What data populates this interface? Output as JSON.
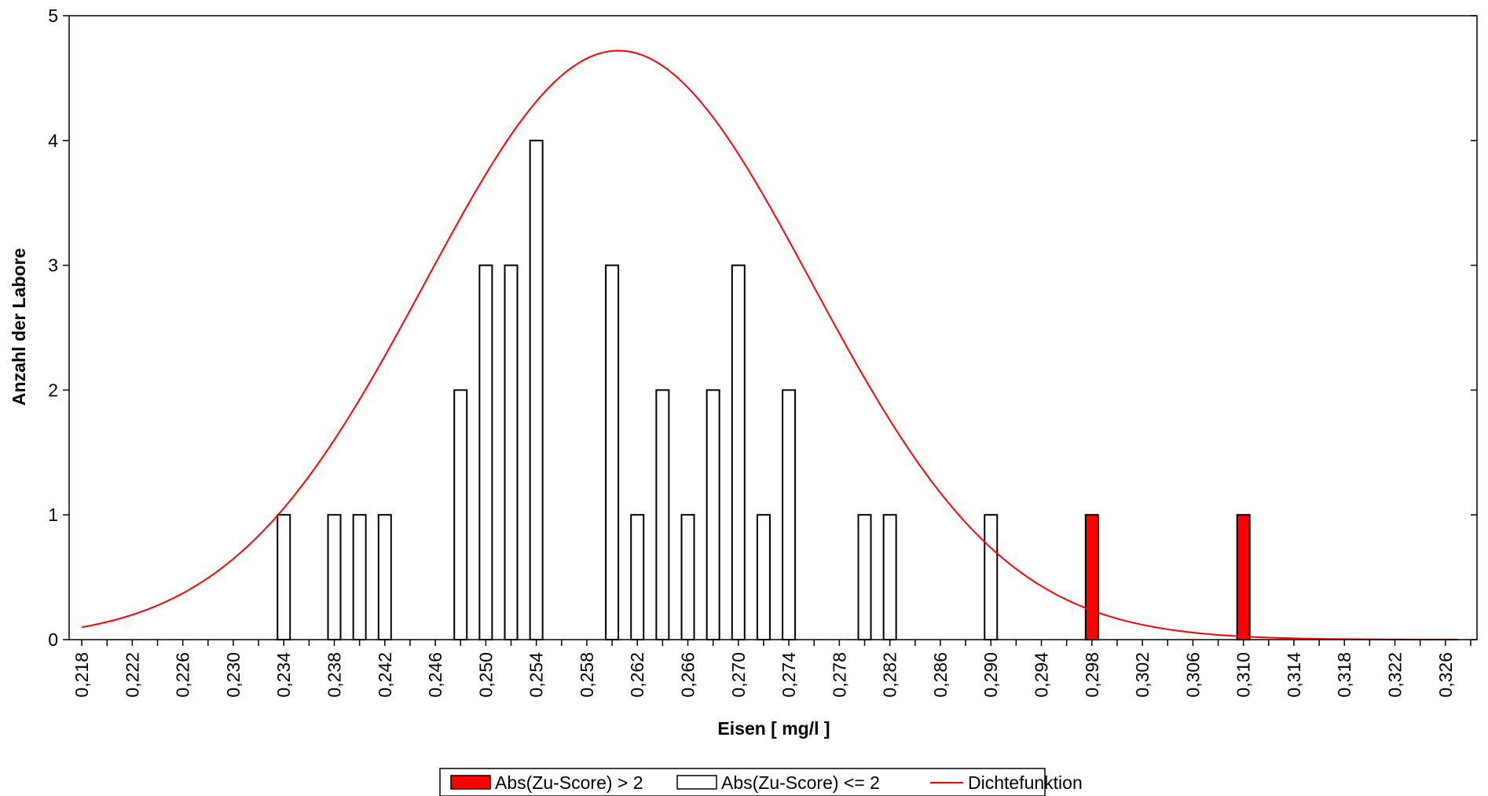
{
  "chart_data": {
    "type": "bar",
    "xlabel": "Eisen [ mg/l ]",
    "ylabel": "Anzahl der Labore",
    "xlim": [
      0.217,
      0.3285
    ],
    "ylim": [
      0,
      5
    ],
    "x_ticks": [
      "0,218",
      "0,222",
      "0,226",
      "0,230",
      "0,234",
      "0,238",
      "0,242",
      "0,246",
      "0,250",
      "0,254",
      "0,258",
      "0,262",
      "0,266",
      "0,270",
      "0,274",
      "0,278",
      "0,282",
      "0,286",
      "0,290",
      "0,294",
      "0,298",
      "0,302",
      "0,306",
      "0,310",
      "0,314",
      "0,318",
      "0,322",
      "0,326"
    ],
    "y_ticks": [
      "0",
      "1",
      "2",
      "3",
      "4",
      "5"
    ],
    "series": [
      {
        "name": "Abs(Zu-Score) > 2",
        "color": "#ff0000",
        "x": [
          0.298,
          0.31
        ],
        "values": [
          1,
          1
        ]
      },
      {
        "name": "Abs(Zu-Score) <= 2",
        "color": "#ffffff",
        "x": [
          0.234,
          0.238,
          0.24,
          0.242,
          0.248,
          0.25,
          0.252,
          0.254,
          0.26,
          0.262,
          0.264,
          0.266,
          0.268,
          0.27,
          0.272,
          0.274,
          0.28,
          0.282,
          0.29
        ],
        "values": [
          1,
          1,
          1,
          1,
          2,
          3,
          3,
          4,
          3,
          1,
          2,
          1,
          2,
          3,
          1,
          2,
          1,
          1,
          1
        ]
      },
      {
        "name": "Dichtefunktion",
        "type": "line",
        "color": "#ff0000",
        "curve": "normal",
        "mean": 0.2605,
        "sd": 0.0153,
        "peak": 4.72,
        "x_range": [
          0.218,
          0.327
        ]
      }
    ],
    "grid": false,
    "legend_position": "bottom-center"
  }
}
